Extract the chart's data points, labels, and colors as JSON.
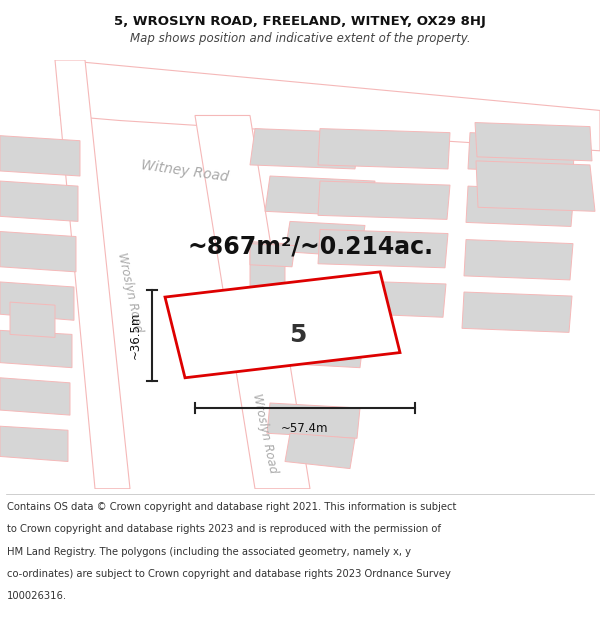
{
  "title_line1": "5, WROSLYN ROAD, FREELAND, WITNEY, OX29 8HJ",
  "title_line2": "Map shows position and indicative extent of the property.",
  "area_label": "~867m²/~0.214ac.",
  "property_number": "5",
  "width_label": "~57.4m",
  "height_label": "~36.5m",
  "footer_lines": [
    "Contains OS data © Crown copyright and database right 2021. This information is subject",
    "to Crown copyright and database rights 2023 and is reproduced with the permission of",
    "HM Land Registry. The polygons (including the associated geometry, namely x, y",
    "co-ordinates) are subject to Crown copyright and database rights 2023 Ordnance Survey",
    "100026316."
  ],
  "bg_color": "#ffffff",
  "map_bg": "#f9f9f9",
  "road_outline": "#f5b8b8",
  "road_fill": "#ffffff",
  "bld_fill": "#d6d6d6",
  "bld_outline": "#c8c8c8",
  "prop_color": "#dd0000",
  "dim_color": "#222222",
  "text_gray": "#aaaaaa",
  "title_fs": 9.5,
  "subtitle_fs": 8.5,
  "area_fs": 17,
  "num_fs": 18,
  "dim_fs": 8.5,
  "footer_fs": 7.2,
  "road_lw": 0.8,
  "bld_lw": 0.7,
  "prop_lw": 2.0
}
